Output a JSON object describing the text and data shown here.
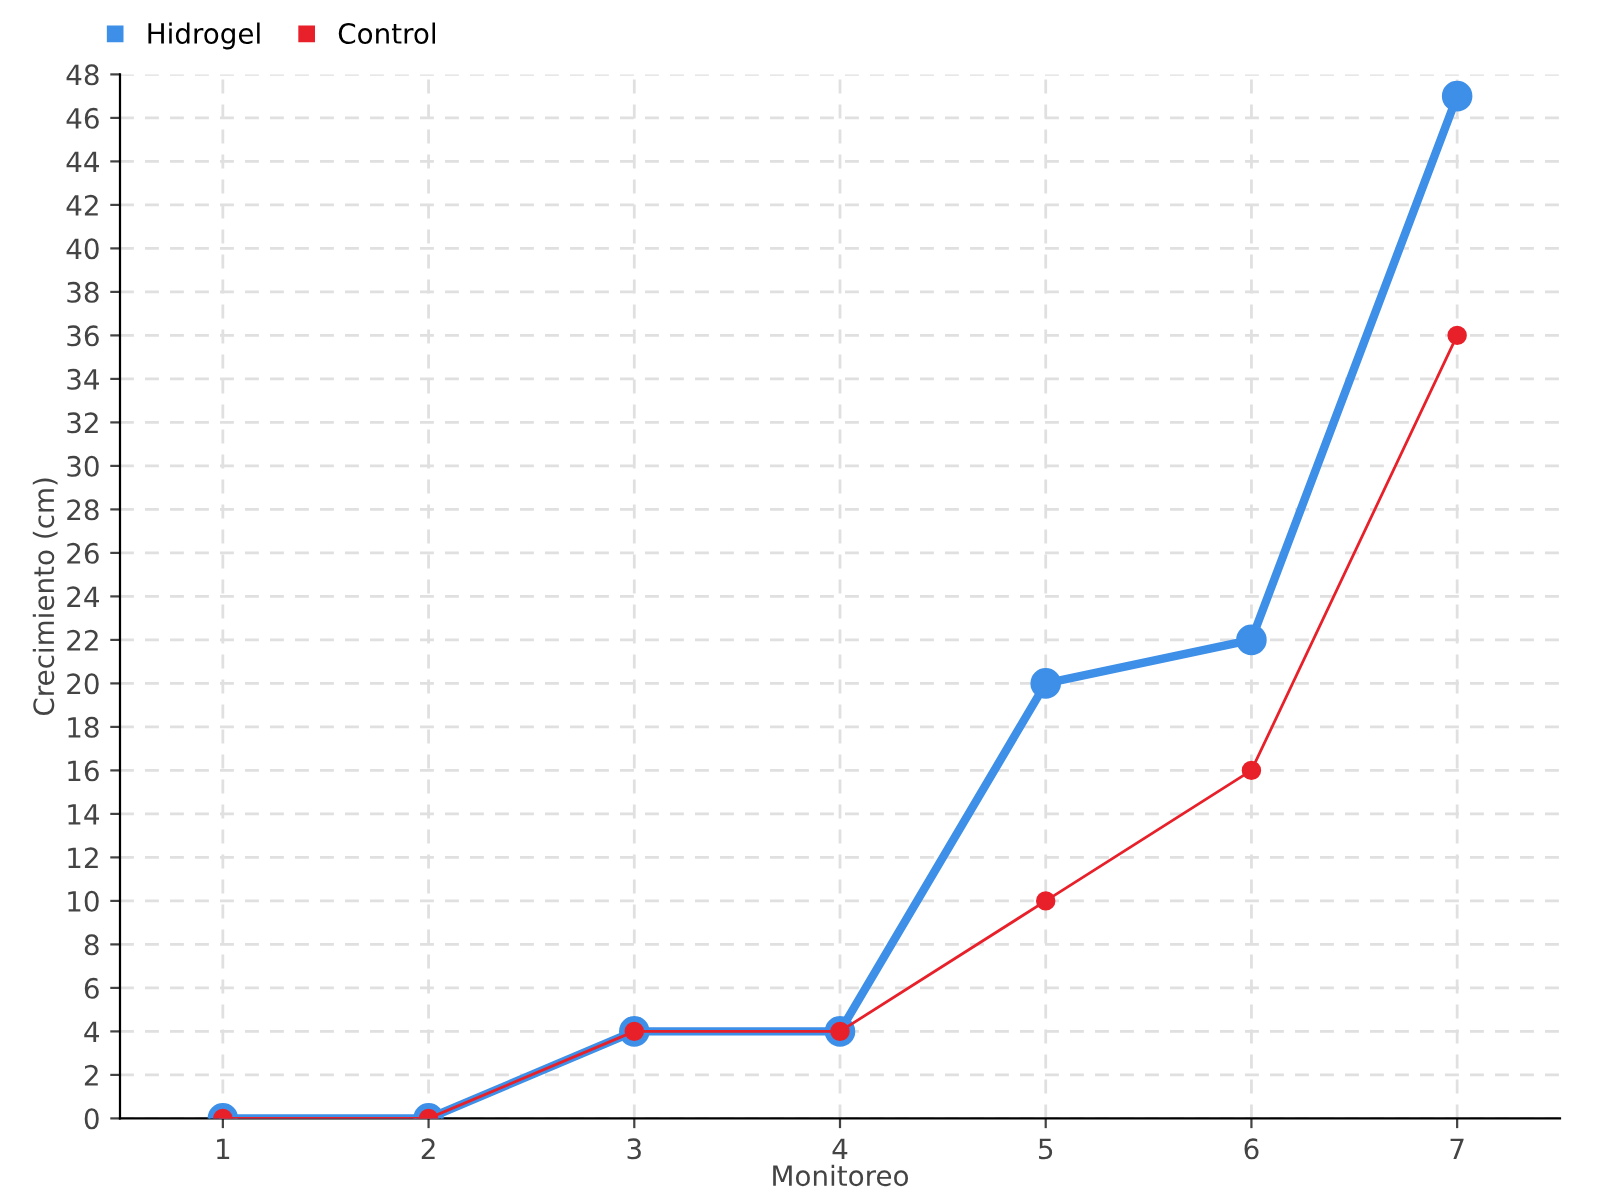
{
  "chart_data": {
    "type": "line",
    "xlabel": "Monitoreo",
    "ylabel": "Crecimiento (cm)",
    "categories": [
      "1",
      "2",
      "3",
      "4",
      "5",
      "6",
      "7"
    ],
    "series": [
      {
        "name": "Hidrogel",
        "color": "#3d8fe8",
        "values": [
          0,
          0,
          4,
          4,
          20,
          22,
          47
        ]
      },
      {
        "name": "Control",
        "color": "#e8202a",
        "values": [
          0,
          0,
          4,
          4,
          10,
          16,
          36
        ]
      }
    ],
    "ylim": [
      0,
      48
    ],
    "yticks": [
      0,
      2,
      4,
      6,
      8,
      10,
      12,
      14,
      16,
      18,
      20,
      22,
      24,
      26,
      28,
      30,
      32,
      34,
      36,
      38,
      40,
      42,
      44,
      46,
      48
    ],
    "grid": true,
    "legend": "top left",
    "marker": "circle",
    "line_style": "solid"
  }
}
